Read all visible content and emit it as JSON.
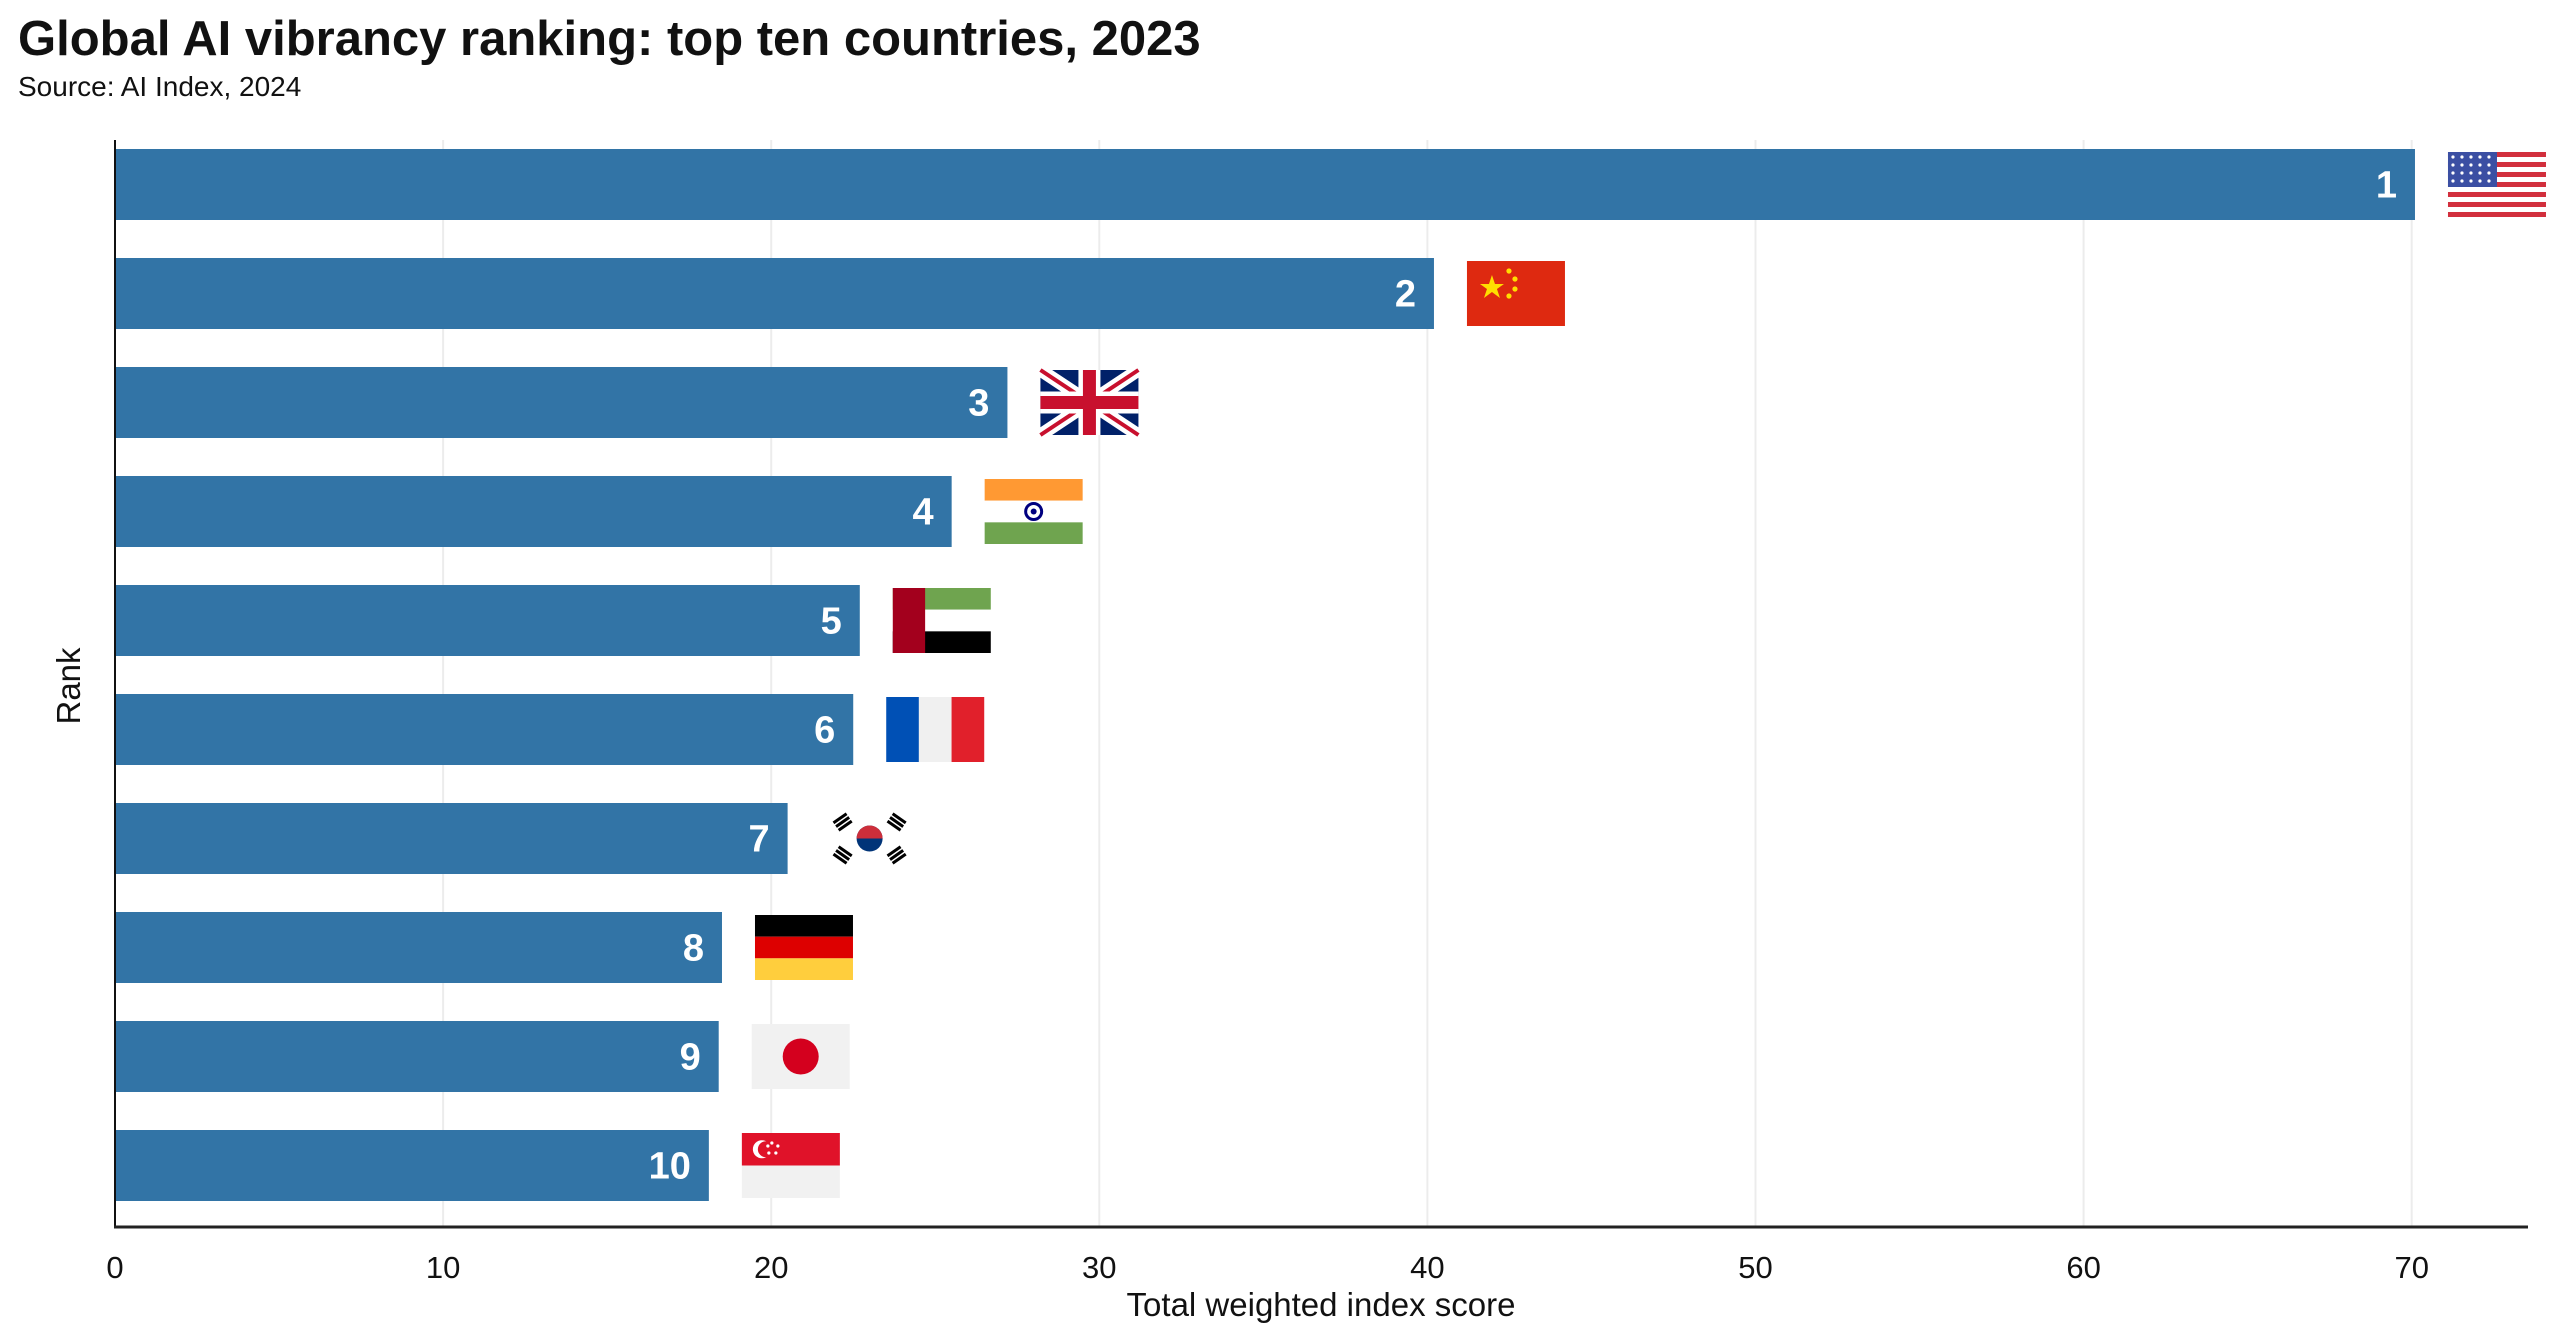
{
  "chart_data": {
    "type": "bar",
    "orientation": "horizontal",
    "title": "Global AI vibrancy ranking: top ten countries, 2023",
    "subtitle": "Source: AI Index, 2024",
    "xlabel": "Total weighted index score",
    "ylabel": "Rank",
    "xlim": [
      0,
      73.5
    ],
    "xticks": [
      "0",
      "10",
      "20",
      "30",
      "40",
      "50",
      "60",
      "70"
    ],
    "grid": "vertical",
    "bar_color": "#3274a6",
    "categories": [
      "1",
      "2",
      "3",
      "4",
      "5",
      "6",
      "7",
      "8",
      "9",
      "10"
    ],
    "values": [
      70.1,
      40.2,
      27.2,
      25.5,
      22.7,
      22.5,
      20.5,
      18.5,
      18.4,
      18.1
    ],
    "flags": [
      "us-flag-icon",
      "china-flag-icon",
      "uk-flag-icon",
      "india-flag-icon",
      "uae-flag-icon",
      "france-flag-icon",
      "south-korea-flag-icon",
      "germany-flag-icon",
      "japan-flag-icon",
      "singapore-flag-icon"
    ]
  }
}
